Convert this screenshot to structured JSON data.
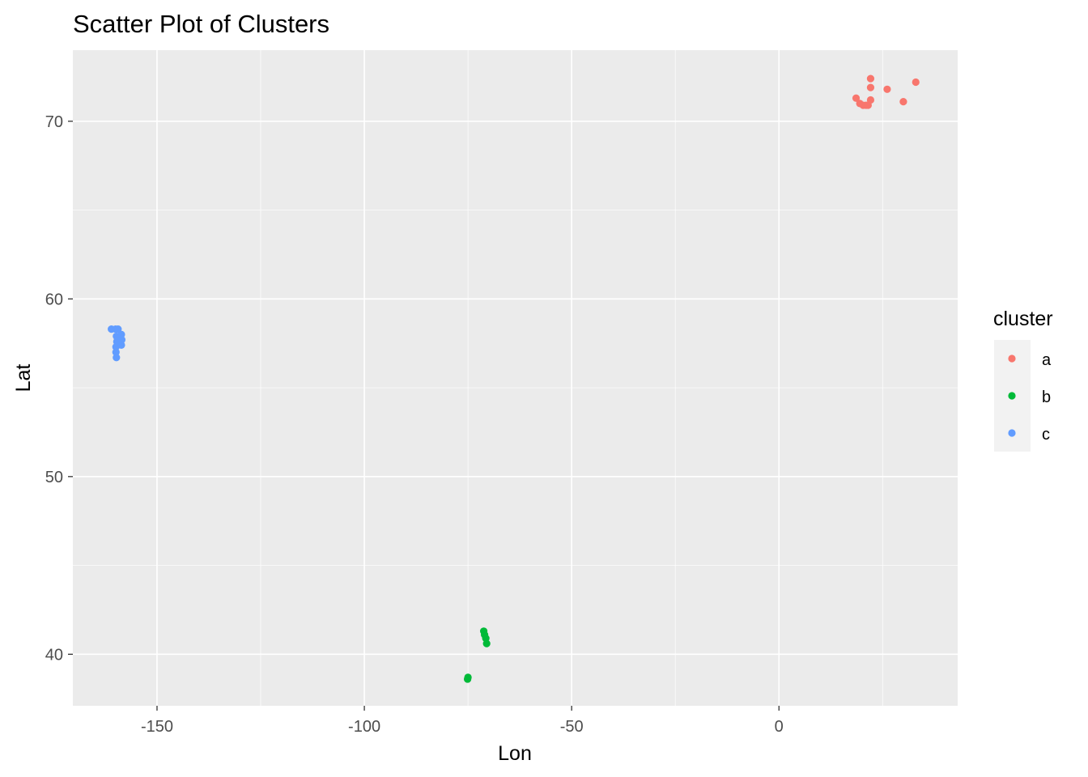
{
  "chart_data": {
    "type": "scatter",
    "title": "Scatter Plot of Clusters",
    "xlabel": "Lon",
    "ylabel": "Lat",
    "xlim": [
      -170.3,
      43.1
    ],
    "ylim": [
      37.1,
      74.0
    ],
    "x_ticks": [
      -150,
      -100,
      -50,
      0
    ],
    "x_tick_labels": [
      "-150",
      "-100",
      "-50",
      "0"
    ],
    "y_ticks": [
      40,
      50,
      60,
      70
    ],
    "y_tick_labels": [
      "40",
      "50",
      "60",
      "70"
    ],
    "grid": true,
    "legend": {
      "title": "cluster",
      "position": "right"
    },
    "series": [
      {
        "name": "a",
        "color": "#F8766D",
        "points": [
          [
            18.6,
            71.3
          ],
          [
            19.5,
            71.0
          ],
          [
            20.3,
            70.9
          ],
          [
            21.0,
            70.9
          ],
          [
            21.5,
            70.9
          ],
          [
            22.1,
            71.2
          ],
          [
            22.1,
            71.9
          ],
          [
            22.1,
            72.4
          ],
          [
            26.1,
            71.8
          ],
          [
            30.0,
            71.1
          ],
          [
            33.0,
            72.2
          ]
        ]
      },
      {
        "name": "b",
        "color": "#00BA38",
        "points": [
          [
            -75.1,
            38.6
          ],
          [
            -75.0,
            38.7
          ],
          [
            -71.2,
            41.3
          ],
          [
            -71.0,
            41.1
          ],
          [
            -70.7,
            40.9
          ],
          [
            -70.5,
            40.6
          ]
        ]
      },
      {
        "name": "c",
        "color": "#619CFF",
        "points": [
          [
            -161.0,
            58.3
          ],
          [
            -160.0,
            58.3
          ],
          [
            -159.4,
            58.3
          ],
          [
            -159.8,
            57.9
          ],
          [
            -159.7,
            57.6
          ],
          [
            -159.9,
            57.3
          ],
          [
            -159.9,
            57.0
          ],
          [
            -159.8,
            56.7
          ],
          [
            -158.6,
            58.0
          ],
          [
            -158.5,
            57.7
          ],
          [
            -158.6,
            57.4
          ]
        ]
      }
    ]
  }
}
